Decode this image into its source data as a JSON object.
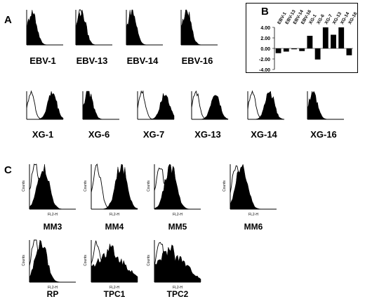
{
  "panels": {
    "a": "A",
    "b": "B",
    "c": "C"
  },
  "panel_a": {
    "row1": [
      "EBV-1",
      "EBV-13",
      "EBV-14",
      "EBV-16"
    ],
    "row2": [
      "XG-1",
      "XG-6",
      "XG-7",
      "XG-13",
      "XG-14",
      "XG-16"
    ]
  },
  "panel_c": {
    "row1": [
      "MM3",
      "MM4",
      "MM5",
      "MM6"
    ],
    "row2": [
      "RP",
      "TPC1",
      "TPC2"
    ],
    "axis_x": "FL2-H",
    "axis_y": "Counts"
  },
  "chart_data": {
    "type": "bar",
    "categories": [
      "EBV-1",
      "EBV-13",
      "EBV-14",
      "EBV-16",
      "XG-1",
      "XG-6",
      "XG-7",
      "XG-13",
      "XG-14",
      "XG-16"
    ],
    "values": [
      -0.9,
      -0.6,
      0,
      -0.5,
      2.4,
      -2.1,
      4.0,
      2.6,
      4.0,
      -1.3
    ],
    "yticks": [
      "4.00",
      "2.00",
      "0.00",
      "-2.00",
      "-4.00"
    ],
    "ylim": [
      -4,
      4
    ]
  }
}
